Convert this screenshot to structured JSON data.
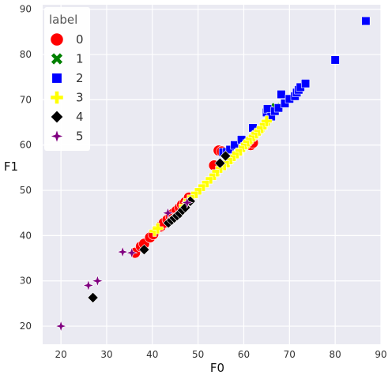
{
  "chart_data": {
    "type": "scatter",
    "xlabel": "F0",
    "ylabel": "F1",
    "xlim": [
      16,
      90
    ],
    "ylim": [
      16,
      91
    ],
    "xticks": [
      20,
      30,
      40,
      50,
      60,
      70,
      80,
      90
    ],
    "yticks": [
      20,
      30,
      40,
      50,
      60,
      70,
      80,
      90
    ],
    "grid": true,
    "background": "#eaeaf2",
    "legend": {
      "title": "label",
      "placement": "top-left"
    },
    "series": [
      {
        "name": "0",
        "color": "#ff0000",
        "marker": "circle",
        "points": [
          [
            36.2,
            36.2
          ],
          [
            37.5,
            37.6
          ],
          [
            38.2,
            38.2
          ],
          [
            39.5,
            39.6
          ],
          [
            40.2,
            40.3
          ],
          [
            41.8,
            42.0
          ],
          [
            42.5,
            42.8
          ],
          [
            43.3,
            43.5
          ],
          [
            44.0,
            44.3
          ],
          [
            44.6,
            44.9
          ],
          [
            45.3,
            45.5
          ],
          [
            46.0,
            46.2
          ],
          [
            46.5,
            46.8
          ],
          [
            47.2,
            47.4
          ],
          [
            48.0,
            48.4
          ],
          [
            53.5,
            55.5
          ],
          [
            54.5,
            58.8
          ],
          [
            55.2,
            58.6
          ],
          [
            56.0,
            58.2
          ],
          [
            61.5,
            60.0
          ],
          [
            62.0,
            60.5
          ]
        ]
      },
      {
        "name": "1",
        "color": "#008000",
        "marker": "x",
        "points": [
          [
            67.0,
            68.3
          ]
        ]
      },
      {
        "name": "2",
        "color": "#0000ff",
        "marker": "square",
        "points": [
          [
            55.5,
            58.4
          ],
          [
            56.3,
            58.5
          ],
          [
            57.0,
            59.0
          ],
          [
            58.0,
            60.0
          ],
          [
            59.5,
            61.2
          ],
          [
            62.0,
            63.8
          ],
          [
            65.0,
            67.2
          ],
          [
            65.2,
            68.0
          ],
          [
            66.0,
            66.3
          ],
          [
            66.8,
            67.5
          ],
          [
            67.6,
            68.2
          ],
          [
            68.2,
            71.2
          ],
          [
            69.0,
            69.2
          ],
          [
            70.0,
            70.2
          ],
          [
            71.2,
            70.8
          ],
          [
            71.6,
            71.6
          ],
          [
            72.0,
            72.2
          ],
          [
            72.4,
            72.8
          ],
          [
            73.5,
            73.6
          ],
          [
            80.0,
            78.8
          ],
          [
            86.7,
            87.4
          ]
        ]
      },
      {
        "name": "3",
        "color": "#ffff00",
        "marker": "plus",
        "points": [
          [
            40.5,
            41.0
          ],
          [
            41.2,
            41.6
          ],
          [
            47.0,
            46.6
          ],
          [
            48.0,
            47.8
          ],
          [
            48.8,
            48.6
          ],
          [
            49.6,
            49.4
          ],
          [
            50.4,
            50.2
          ],
          [
            51.2,
            51.0
          ],
          [
            52.0,
            51.8
          ],
          [
            52.8,
            52.6
          ],
          [
            53.6,
            53.4
          ],
          [
            54.2,
            54.2
          ],
          [
            55.0,
            55.0
          ],
          [
            55.8,
            55.6
          ],
          [
            56.6,
            56.2
          ],
          [
            57.2,
            56.9
          ],
          [
            57.9,
            57.6
          ],
          [
            58.6,
            58.2
          ],
          [
            59.3,
            58.8
          ],
          [
            60.0,
            59.6
          ],
          [
            60.5,
            60.2
          ],
          [
            61.0,
            60.8
          ],
          [
            61.6,
            61.4
          ],
          [
            62.2,
            62.0
          ],
          [
            62.8,
            62.6
          ],
          [
            63.4,
            63.2
          ],
          [
            64.0,
            63.8
          ],
          [
            64.6,
            64.6
          ],
          [
            65.0,
            65.3
          ]
        ]
      },
      {
        "name": "4",
        "color": "#000000",
        "marker": "diamond",
        "points": [
          [
            27.0,
            26.3
          ],
          [
            38.2,
            36.9
          ],
          [
            43.5,
            42.8
          ],
          [
            44.2,
            43.4
          ],
          [
            44.8,
            43.9
          ],
          [
            45.4,
            44.4
          ],
          [
            46.0,
            44.9
          ],
          [
            46.6,
            45.6
          ],
          [
            47.2,
            46.2
          ],
          [
            48.3,
            47.6
          ],
          [
            54.8,
            56.0
          ],
          [
            56.0,
            57.6
          ]
        ]
      },
      {
        "name": "5",
        "color": "#800080",
        "marker": "star",
        "points": [
          [
            20.0,
            20.0
          ],
          [
            26.0,
            29.0
          ],
          [
            28.0,
            30.0
          ],
          [
            33.5,
            36.4
          ],
          [
            35.5,
            36.2
          ],
          [
            43.4,
            45.0
          ],
          [
            47.6,
            47.3
          ]
        ]
      }
    ]
  }
}
